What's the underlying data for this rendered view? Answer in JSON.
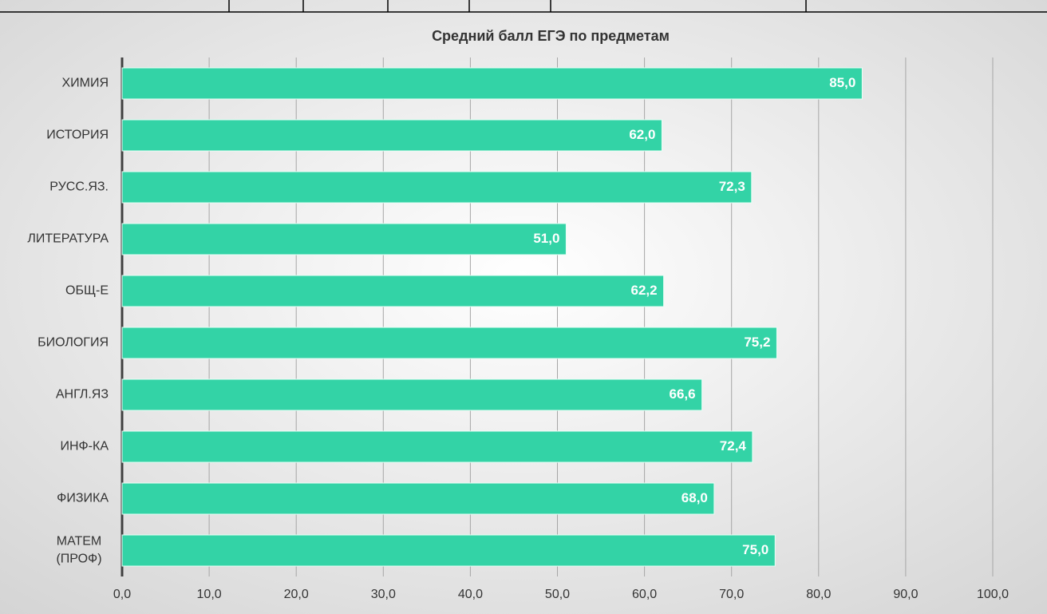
{
  "chart_data": {
    "type": "bar",
    "orientation": "horizontal",
    "title": "Средний балл ЕГЭ по предметам",
    "categories": [
      "ХИМИЯ",
      "ИСТОРИЯ",
      "РУСС.ЯЗ.",
      "ЛИТЕРАТУРА",
      "ОБЩ-Е",
      "БИОЛОГИЯ",
      "АНГЛ.ЯЗ",
      "ИНФ-КА",
      "ФИЗИКА",
      "МАТЕМ (ПРОФ)"
    ],
    "values": [
      85.0,
      62.0,
      72.3,
      51.0,
      62.2,
      75.2,
      66.6,
      72.4,
      68.0,
      75.0
    ],
    "value_labels": [
      "85,0",
      "62,0",
      "72,3",
      "51,0",
      "62,2",
      "75,2",
      "66,6",
      "72,4",
      "68,0",
      "75,0"
    ],
    "color": "#33d3a6",
    "xlim": [
      0,
      100
    ],
    "xticks": [
      {
        "value": 0,
        "label": "0,0"
      },
      {
        "value": 10,
        "label": "10,0"
      },
      {
        "value": 20,
        "label": "20,0"
      },
      {
        "value": 30,
        "label": "30,0"
      },
      {
        "value": 40,
        "label": "40,0"
      },
      {
        "value": 50,
        "label": "50,0"
      },
      {
        "value": 60,
        "label": "60,0"
      },
      {
        "value": 70,
        "label": "70,0"
      },
      {
        "value": 80,
        "label": "80,0"
      },
      {
        "value": 90,
        "label": "90,0"
      },
      {
        "value": 100,
        "label": "100,0"
      }
    ],
    "grid": true
  }
}
